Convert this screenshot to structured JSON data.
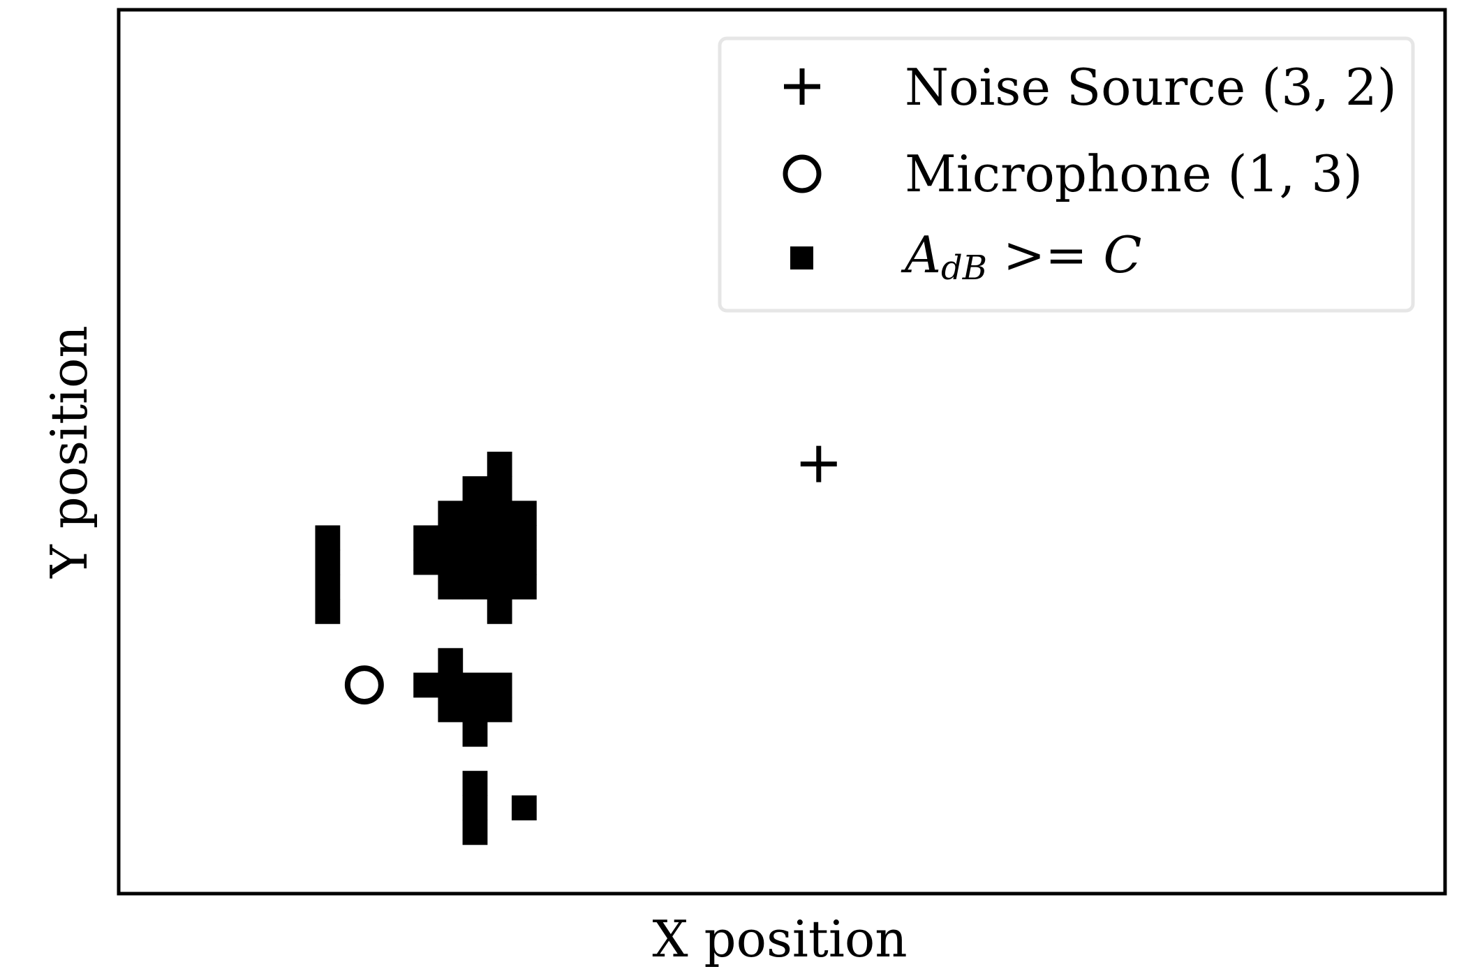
{
  "chart_data": {
    "type": "scatter",
    "xlabel": "X position",
    "ylabel": "Y position",
    "grid": false,
    "ticks": false,
    "legend_position": "top-right",
    "colors": {
      "marker": "#000000",
      "legend_border": "#e6e6e6",
      "background": "#ffffff"
    },
    "grid_cells": {
      "x_range": [
        -1,
        53
      ],
      "y_range": [
        0,
        36
      ],
      "cells": [
        [
          7,
          11
        ],
        [
          7,
          12
        ],
        [
          7,
          13
        ],
        [
          7,
          14
        ],
        [
          11,
          13
        ],
        [
          11,
          14
        ],
        [
          12,
          12
        ],
        [
          12,
          13
        ],
        [
          12,
          14
        ],
        [
          12,
          15
        ],
        [
          13,
          12
        ],
        [
          13,
          13
        ],
        [
          13,
          14
        ],
        [
          13,
          15
        ],
        [
          13,
          16
        ],
        [
          14,
          11
        ],
        [
          14,
          12
        ],
        [
          14,
          13
        ],
        [
          14,
          14
        ],
        [
          14,
          15
        ],
        [
          14,
          16
        ],
        [
          14,
          17
        ],
        [
          15,
          12
        ],
        [
          15,
          13
        ],
        [
          15,
          14
        ],
        [
          15,
          15
        ],
        [
          11,
          8
        ],
        [
          12,
          7
        ],
        [
          12,
          8
        ],
        [
          12,
          9
        ],
        [
          13,
          6
        ],
        [
          13,
          7
        ],
        [
          13,
          8
        ],
        [
          14,
          7
        ],
        [
          14,
          8
        ],
        [
          13,
          2
        ],
        [
          13,
          3
        ],
        [
          13,
          4
        ],
        [
          15,
          3
        ]
      ]
    },
    "noise_source": {
      "x": 27.5,
      "y": 17.5
    },
    "microphone": {
      "x": 9,
      "y": 8.5
    },
    "legend": [
      {
        "marker": "plus",
        "label": "Noise Source (3, 2)"
      },
      {
        "marker": "circle",
        "label": "Microphone (1, 3)"
      },
      {
        "marker": "square",
        "label_base": "A",
        "label_sub": "dB",
        "label_rest": " >= C"
      }
    ]
  }
}
